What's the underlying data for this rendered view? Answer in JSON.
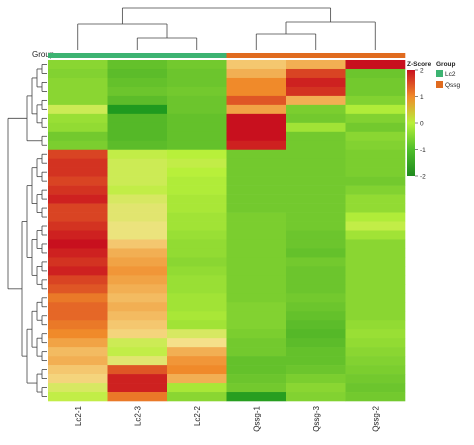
{
  "chart_data": {
    "type": "heatmap",
    "group_label": "Group",
    "columns": [
      "Lc2-1",
      "Lc2-3",
      "Lc2-2",
      "Qssg-1",
      "Qssg-3",
      "Qssg-2"
    ],
    "column_groups": [
      "Lc2",
      "Lc2",
      "Lc2",
      "Qssg",
      "Qssg",
      "Qssg"
    ],
    "legend": {
      "zscore_title": "Z-Score",
      "group_title": "Group",
      "ticks": [
        2,
        1,
        0,
        -1,
        -2
      ],
      "groups": [
        {
          "name": "Lc2",
          "color": "#3cb371"
        },
        {
          "name": "Qssg",
          "color": "#e06b1f"
        }
      ]
    },
    "color_scale": {
      "low": "#1f9a1f",
      "mid": "#b8f03a",
      "high": "#c8101e",
      "range": [
        -2,
        2
      ]
    },
    "rows": [
      [
        -0.6,
        -1.1,
        -0.9,
        0.8,
        1.0,
        2.0
      ],
      [
        -0.7,
        -1.2,
        -1.0,
        1.0,
        1.7,
        -1.0
      ],
      [
        -0.6,
        -1.1,
        -1.0,
        1.3,
        1.9,
        -0.9
      ],
      [
        -0.6,
        -1.0,
        -0.9,
        1.3,
        1.8,
        -0.9
      ],
      [
        -0.6,
        -1.2,
        -1.0,
        1.6,
        1.0,
        -0.7
      ],
      [
        0.2,
        -2.1,
        -1.0,
        1.1,
        -0.8,
        -0.1
      ],
      [
        -0.4,
        -1.3,
        -1.1,
        2.0,
        -0.9,
        -0.7
      ],
      [
        -0.5,
        -1.3,
        -1.1,
        2.0,
        -0.3,
        -0.9
      ],
      [
        -0.9,
        -1.3,
        -1.1,
        2.0,
        -0.9,
        -0.6
      ],
      [
        -0.8,
        -1.2,
        -1.1,
        1.9,
        -0.9,
        -0.7
      ],
      [
        1.7,
        0.1,
        0.0,
        -0.9,
        -0.9,
        -0.8
      ],
      [
        1.8,
        0.2,
        0.1,
        -0.9,
        -0.9,
        -0.8
      ],
      [
        1.8,
        0.2,
        0.0,
        -0.9,
        -0.9,
        -0.8
      ],
      [
        1.7,
        0.2,
        -0.1,
        -0.9,
        -0.9,
        -0.9
      ],
      [
        1.8,
        0.1,
        -0.1,
        -0.9,
        -0.9,
        -0.7
      ],
      [
        1.9,
        0.3,
        -0.2,
        -0.9,
        -0.9,
        -0.5
      ],
      [
        1.7,
        0.4,
        -0.2,
        -0.9,
        -0.9,
        -0.5
      ],
      [
        1.7,
        0.4,
        -0.3,
        -0.8,
        -0.9,
        -0.1
      ],
      [
        1.8,
        0.5,
        -0.3,
        -0.8,
        -0.9,
        0.1
      ],
      [
        1.9,
        0.5,
        -0.4,
        -0.8,
        -1.0,
        -0.3
      ],
      [
        2.0,
        0.8,
        -0.5,
        -0.8,
        -1.0,
        -0.6
      ],
      [
        1.9,
        1.0,
        -0.5,
        -0.8,
        -1.1,
        -0.6
      ],
      [
        1.8,
        1.1,
        -0.6,
        -0.8,
        -0.9,
        -0.6
      ],
      [
        1.9,
        1.2,
        -0.5,
        -0.8,
        -1.0,
        -0.6
      ],
      [
        1.7,
        1.1,
        -0.4,
        -0.8,
        -1.0,
        -0.6
      ],
      [
        1.6,
        1.0,
        -0.4,
        -0.8,
        -1.0,
        -0.6
      ],
      [
        1.4,
        0.9,
        -0.3,
        -0.8,
        -0.9,
        -0.6
      ],
      [
        1.5,
        1.0,
        -0.3,
        -0.7,
        -1.0,
        -0.6
      ],
      [
        1.5,
        0.9,
        -0.2,
        -0.7,
        -1.1,
        -0.6
      ],
      [
        1.4,
        0.8,
        -0.3,
        -0.7,
        -1.2,
        -0.5
      ],
      [
        1.3,
        0.7,
        0.3,
        -0.8,
        -1.3,
        -0.4
      ],
      [
        1.1,
        0.2,
        0.6,
        -0.9,
        -1.2,
        -0.5
      ],
      [
        0.9,
        0.1,
        1.0,
        -0.9,
        -1.1,
        -0.6
      ],
      [
        1.0,
        0.4,
        1.2,
        -1.1,
        -1.1,
        -0.7
      ],
      [
        0.8,
        1.6,
        1.3,
        -1.1,
        -1.0,
        -0.8
      ],
      [
        0.7,
        1.9,
        1.0,
        -1.0,
        -0.8,
        -0.9
      ],
      [
        0.3,
        1.9,
        -0.2,
        -0.9,
        -0.6,
        -1.0
      ],
      [
        0.1,
        1.4,
        -0.6,
        -1.9,
        -0.7,
        -0.9
      ]
    ]
  }
}
